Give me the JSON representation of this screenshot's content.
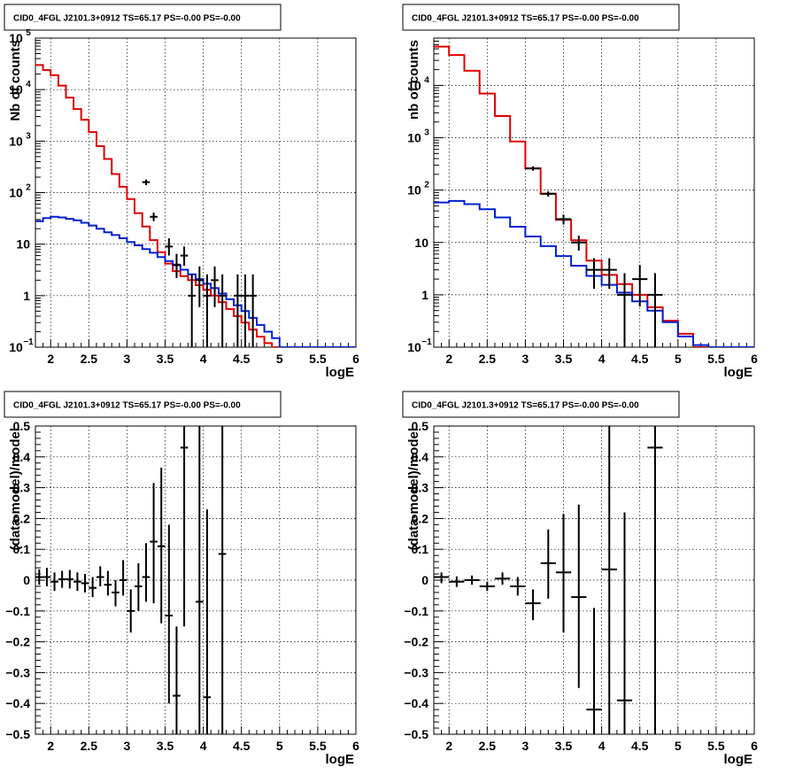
{
  "panel_title": "CID0_4FGL J2101.3+0912 TS=65.17 PS=-0.00 PS=-0.00",
  "colors": {
    "data": "#000000",
    "total_model": "#e00000",
    "background_model": "#0020d0"
  },
  "chart_data": [
    {
      "type": "histogram",
      "title": "CID0_4FGL J2101.3+0912 TS=65.17 PS=-0.00 PS=-0.00",
      "xlabel": "logE",
      "ylabel": "Nb of counts",
      "xlim": [
        1.8,
        6.0
      ],
      "ylim": [
        0.1,
        100000
      ],
      "yscale": "log",
      "grid": true,
      "x_ticks": [
        "2",
        "2.5",
        "3",
        "3.5",
        "4",
        "4.5",
        "5",
        "5.5",
        "6"
      ],
      "y_ticks": [
        {
          "value": 0.1,
          "base": "10",
          "exp": "−1"
        },
        {
          "value": 1,
          "label": "1"
        },
        {
          "value": 10,
          "label": "10"
        },
        {
          "value": 100,
          "base": "10",
          "exp": "2"
        },
        {
          "value": 1000,
          "base": "10",
          "exp": "3"
        },
        {
          "value": 10000,
          "base": "10",
          "exp": "4"
        },
        {
          "value": 100000,
          "base": "10",
          "exp": "5"
        }
      ],
      "bin_edges": [
        1.8,
        1.9,
        2.0,
        2.1,
        2.2,
        2.3,
        2.4,
        2.5,
        2.6,
        2.7,
        2.8,
        2.9,
        3.0,
        3.1,
        3.2,
        3.3,
        3.4,
        3.5,
        3.6,
        3.7,
        3.8,
        3.9,
        4.0,
        4.1,
        4.2,
        4.3,
        4.4,
        4.5,
        4.6,
        4.7,
        4.8,
        4.9,
        5.0,
        5.1,
        5.2,
        5.3,
        5.4,
        5.5,
        5.6,
        5.7,
        5.8,
        5.9,
        6.0
      ],
      "series": [
        {
          "role": "total_model",
          "values": [
            30000,
            24000,
            19000,
            12000,
            7000,
            4200,
            2600,
            1500,
            800,
            450,
            230,
            130,
            75,
            40,
            22,
            12,
            7,
            4.2,
            3,
            2.4,
            2.0,
            1.6,
            1.3,
            1.0,
            0.75,
            0.55,
            0.4,
            0.3,
            0.22,
            0.16,
            0.12,
            0.09,
            0.08,
            0.08,
            0.08,
            0.08,
            0.08,
            0.08,
            0.08,
            0.08,
            0.08,
            0.08
          ]
        },
        {
          "role": "background_model",
          "values": [
            28,
            32,
            34,
            33,
            31,
            29,
            26,
            23,
            20,
            17,
            15,
            13,
            11,
            9.5,
            8,
            6.8,
            5.6,
            4.7,
            3.9,
            3.2,
            2.6,
            2.1,
            1.7,
            1.4,
            1.1,
            0.85,
            0.65,
            0.5,
            0.37,
            0.27,
            0.2,
            0.15,
            0.09,
            0.09,
            0.09,
            0.09,
            0.09,
            0.09,
            0.09,
            0.09,
            0.09,
            0.09
          ]
        }
      ],
      "points": [
        {
          "x": 3.25,
          "y": 160,
          "lo": 140,
          "hi": 180,
          "xerr": 0.05
        },
        {
          "x": 3.35,
          "y": 34,
          "lo": 28,
          "hi": 41,
          "xerr": 0.05
        },
        {
          "x": 3.55,
          "y": 9,
          "lo": 6,
          "hi": 13,
          "xerr": 0.05
        },
        {
          "x": 3.65,
          "y": 4,
          "lo": 2.2,
          "hi": 6.5,
          "xerr": 0.05
        },
        {
          "x": 3.75,
          "y": 6,
          "lo": 3.8,
          "hi": 9,
          "xerr": 0.05
        },
        {
          "x": 3.85,
          "y": 1,
          "lo": 0.1,
          "hi": 2.6,
          "xerr": 0.05
        },
        {
          "x": 3.95,
          "y": 2,
          "lo": 0.6,
          "hi": 3.7,
          "xerr": 0.05
        },
        {
          "x": 4.05,
          "y": 1,
          "lo": 0.1,
          "hi": 2.6,
          "xerr": 0.05
        },
        {
          "x": 4.15,
          "y": 2,
          "lo": 0.6,
          "hi": 3.7,
          "xerr": 0.05
        },
        {
          "x": 4.25,
          "y": 1,
          "lo": 0.1,
          "hi": 2.6,
          "xerr": 0.05
        },
        {
          "x": 4.45,
          "y": 1,
          "lo": 0.1,
          "hi": 2.6,
          "xerr": 0.05
        },
        {
          "x": 4.55,
          "y": 1,
          "lo": 0.1,
          "hi": 2.6,
          "xerr": 0.05
        },
        {
          "x": 4.65,
          "y": 1,
          "lo": 0.1,
          "hi": 2.6,
          "xerr": 0.05
        }
      ]
    },
    {
      "type": "histogram",
      "title": "CID0_4FGL J2101.3+0912 TS=65.17 PS=-0.00 PS=-0.00",
      "xlabel": "logE",
      "ylabel": "nb of counts",
      "xlim": [
        1.8,
        6.0
      ],
      "ylim": [
        0.1,
        80000
      ],
      "yscale": "log",
      "grid": true,
      "x_ticks": [
        "2",
        "2.5",
        "3",
        "3.5",
        "4",
        "4.5",
        "5",
        "5.5",
        "6"
      ],
      "y_ticks": [
        {
          "value": 0.1,
          "base": "10",
          "exp": "−1"
        },
        {
          "value": 1,
          "label": "1"
        },
        {
          "value": 10,
          "label": "10"
        },
        {
          "value": 100,
          "base": "10",
          "exp": "2"
        },
        {
          "value": 1000,
          "base": "10",
          "exp": "3"
        },
        {
          "value": 10000,
          "base": "10",
          "exp": "4"
        }
      ],
      "bin_edges": [
        1.8,
        2.0,
        2.2,
        2.4,
        2.6,
        2.8,
        3.0,
        3.2,
        3.4,
        3.6,
        3.8,
        4.0,
        4.2,
        4.4,
        4.6,
        4.8,
        5.0,
        5.2,
        5.4,
        5.6,
        5.8,
        6.0
      ],
      "series": [
        {
          "role": "total_model",
          "values": [
            55000,
            38000,
            19000,
            7000,
            2600,
            850,
            260,
            85,
            27,
            11,
            4.5,
            2.4,
            1.6,
            1.0,
            0.58,
            0.32,
            0.18,
            0.09,
            0.09,
            0.09,
            0.09
          ]
        },
        {
          "role": "background_model",
          "values": [
            58,
            62,
            54,
            43,
            30,
            20,
            13,
            8.5,
            5.5,
            3.6,
            2.3,
            1.55,
            1.1,
            0.75,
            0.5,
            0.3,
            0.16,
            0.11,
            0.1,
            0.1,
            0.1
          ]
        }
      ],
      "points": [
        {
          "x": 3.1,
          "y": 260,
          "lo": 235,
          "hi": 285,
          "xerr": 0.1
        },
        {
          "x": 3.3,
          "y": 85,
          "lo": 75,
          "hi": 95,
          "xerr": 0.1
        },
        {
          "x": 3.5,
          "y": 28,
          "lo": 22,
          "hi": 34,
          "xerr": 0.1
        },
        {
          "x": 3.7,
          "y": 10,
          "lo": 7,
          "hi": 13.5,
          "xerr": 0.1
        },
        {
          "x": 3.9,
          "y": 3,
          "lo": 1.3,
          "hi": 5,
          "xerr": 0.1
        },
        {
          "x": 4.1,
          "y": 3,
          "lo": 1.3,
          "hi": 5,
          "xerr": 0.1
        },
        {
          "x": 4.3,
          "y": 1,
          "lo": 0.1,
          "hi": 2.6,
          "xerr": 0.1
        },
        {
          "x": 4.5,
          "y": 2,
          "lo": 0.6,
          "hi": 3.7,
          "xerr": 0.1
        },
        {
          "x": 4.7,
          "y": 1,
          "lo": 0.1,
          "hi": 2.6,
          "xerr": 0.1
        }
      ]
    },
    {
      "type": "scatter",
      "title": "CID0_4FGL J2101.3+0912 TS=65.17 PS=-0.00 PS=-0.00",
      "xlabel": "logE",
      "ylabel": "(data-model)/model",
      "xlim": [
        1.8,
        6.0
      ],
      "ylim": [
        -0.5,
        0.5
      ],
      "yscale": "linear",
      "grid": true,
      "x_ticks": [
        "2",
        "2.5",
        "3",
        "3.5",
        "4",
        "4.5",
        "5",
        "5.5",
        "6"
      ],
      "y_ticks": [
        "−0.5",
        "−0.4",
        "−0.3",
        "−0.2",
        "−0.1",
        "0",
        "0.1",
        "0.2",
        "0.3",
        "0.4",
        "0.5"
      ],
      "points": [
        {
          "x": 1.85,
          "y": 0.01,
          "lo": -0.015,
          "hi": 0.035,
          "xerr": 0.05
        },
        {
          "x": 1.95,
          "y": 0.01,
          "lo": -0.02,
          "hi": 0.04,
          "xerr": 0.05
        },
        {
          "x": 2.05,
          "y": -0.005,
          "lo": -0.035,
          "hi": 0.025,
          "xerr": 0.05
        },
        {
          "x": 2.15,
          "y": 0.003,
          "lo": -0.025,
          "hi": 0.03,
          "xerr": 0.05
        },
        {
          "x": 2.25,
          "y": 0.003,
          "lo": -0.027,
          "hi": 0.033,
          "xerr": 0.05
        },
        {
          "x": 2.35,
          "y": -0.005,
          "lo": -0.035,
          "hi": 0.025,
          "xerr": 0.05
        },
        {
          "x": 2.45,
          "y": -0.01,
          "lo": -0.04,
          "hi": 0.02,
          "xerr": 0.05
        },
        {
          "x": 2.55,
          "y": -0.025,
          "lo": -0.055,
          "hi": 0.01,
          "xerr": 0.05
        },
        {
          "x": 2.65,
          "y": 0.01,
          "lo": -0.02,
          "hi": 0.045,
          "xerr": 0.05
        },
        {
          "x": 2.75,
          "y": -0.015,
          "lo": -0.05,
          "hi": 0.03,
          "xerr": 0.05
        },
        {
          "x": 2.85,
          "y": -0.04,
          "lo": -0.085,
          "hi": 0.0,
          "xerr": 0.05
        },
        {
          "x": 2.95,
          "y": 0.0,
          "lo": -0.05,
          "hi": 0.065,
          "xerr": 0.05
        },
        {
          "x": 3.05,
          "y": -0.1,
          "lo": -0.17,
          "hi": -0.03,
          "xerr": 0.05
        },
        {
          "x": 3.15,
          "y": -0.02,
          "lo": -0.1,
          "hi": 0.055,
          "xerr": 0.05
        },
        {
          "x": 3.25,
          "y": 0.01,
          "lo": -0.07,
          "hi": 0.12,
          "xerr": 0.05
        },
        {
          "x": 3.35,
          "y": 0.125,
          "lo": -0.075,
          "hi": 0.315,
          "xerr": 0.05
        },
        {
          "x": 3.45,
          "y": 0.11,
          "lo": -0.14,
          "hi": 0.365,
          "xerr": 0.05
        },
        {
          "x": 3.55,
          "y": -0.115,
          "lo": -0.4,
          "hi": 0.18,
          "xerr": 0.05
        },
        {
          "x": 3.65,
          "y": -0.375,
          "lo": -0.5,
          "hi": -0.15,
          "xerr": 0.05
        },
        {
          "x": 3.75,
          "y": 0.43,
          "lo": -0.15,
          "hi": 0.5,
          "xerr": 0.05
        },
        {
          "x": 3.95,
          "y": -0.07,
          "lo": -0.5,
          "hi": 0.5,
          "xerr": 0.05
        },
        {
          "x": 4.05,
          "y": -0.38,
          "lo": -0.5,
          "hi": 0.23,
          "xerr": 0.05
        },
        {
          "x": 4.25,
          "y": 0.085,
          "lo": -0.5,
          "hi": 0.5,
          "xerr": 0.05
        }
      ]
    },
    {
      "type": "scatter",
      "title": "CID0_4FGL J2101.3+0912 TS=65.17 PS=-0.00 PS=-0.00",
      "xlabel": "logE",
      "ylabel": "(data-model)/model",
      "xlim": [
        1.8,
        6.0
      ],
      "ylim": [
        -0.5,
        0.5
      ],
      "yscale": "linear",
      "grid": true,
      "x_ticks": [
        "2",
        "2.5",
        "3",
        "3.5",
        "4",
        "4.5",
        "5",
        "5.5",
        "6"
      ],
      "y_ticks": [
        "−0.5",
        "−0.4",
        "−0.3",
        "−0.2",
        "−0.1",
        "0",
        "0.1",
        "0.2",
        "0.3",
        "0.4",
        "0.5"
      ],
      "points": [
        {
          "x": 1.9,
          "y": 0.01,
          "lo": -0.01,
          "hi": 0.025,
          "xerr": 0.1
        },
        {
          "x": 2.1,
          "y": -0.005,
          "lo": -0.022,
          "hi": 0.012,
          "xerr": 0.1
        },
        {
          "x": 2.3,
          "y": 0.0,
          "lo": -0.015,
          "hi": 0.015,
          "xerr": 0.1
        },
        {
          "x": 2.5,
          "y": -0.02,
          "lo": -0.035,
          "hi": -0.005,
          "xerr": 0.1
        },
        {
          "x": 2.7,
          "y": 0.005,
          "lo": -0.015,
          "hi": 0.025,
          "xerr": 0.1
        },
        {
          "x": 2.9,
          "y": -0.02,
          "lo": -0.05,
          "hi": 0.01,
          "xerr": 0.1
        },
        {
          "x": 3.1,
          "y": -0.075,
          "lo": -0.13,
          "hi": -0.03,
          "xerr": 0.1
        },
        {
          "x": 3.3,
          "y": 0.055,
          "lo": -0.06,
          "hi": 0.165,
          "xerr": 0.1
        },
        {
          "x": 3.5,
          "y": 0.025,
          "lo": -0.17,
          "hi": 0.215,
          "xerr": 0.1
        },
        {
          "x": 3.7,
          "y": -0.055,
          "lo": -0.35,
          "hi": 0.245,
          "xerr": 0.1
        },
        {
          "x": 3.9,
          "y": -0.42,
          "lo": -0.5,
          "hi": -0.09,
          "xerr": 0.1
        },
        {
          "x": 4.1,
          "y": 0.035,
          "lo": -0.5,
          "hi": 0.5,
          "xerr": 0.1
        },
        {
          "x": 4.3,
          "y": -0.39,
          "lo": -0.5,
          "hi": 0.22,
          "xerr": 0.1
        },
        {
          "x": 4.7,
          "y": 0.43,
          "lo": -0.5,
          "hi": 0.5,
          "xerr": 0.1
        }
      ]
    }
  ]
}
